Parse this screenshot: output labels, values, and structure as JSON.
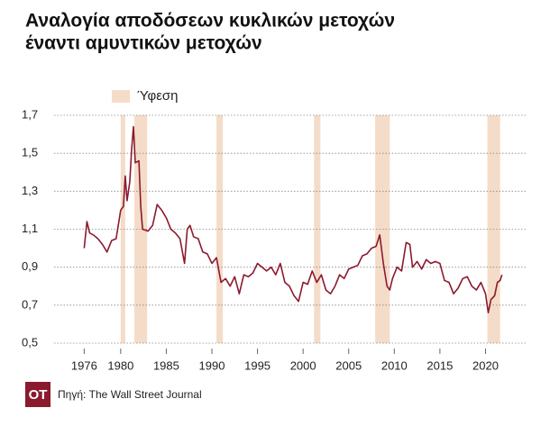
{
  "chart_data": {
    "type": "line",
    "title": [
      "Αναλογία αποδόσεων κυκλικών μετοχών",
      "έναντι αμυντικών μετοχών"
    ],
    "source": "Πηγή: The Wall Street Journal",
    "logo": "OT",
    "recession_label": "Ύφεση",
    "recession_color": "#f5dcc8",
    "recessions": [
      [
        1980.0,
        1980.5
      ],
      [
        1981.5,
        1982.9
      ],
      [
        1990.5,
        1991.2
      ],
      [
        2001.2,
        2001.9
      ],
      [
        2007.9,
        2009.5
      ],
      [
        2020.2,
        2021.6
      ]
    ],
    "xlim": [
      1972.7,
      2024.6
    ],
    "ylim": [
      0.5,
      1.7
    ],
    "xticks": [
      1976,
      1980,
      1985,
      1990,
      1995,
      2000,
      2005,
      2010,
      2015,
      2020
    ],
    "yticks": [
      {
        "value": 0.5,
        "label": "0,5"
      },
      {
        "value": 0.7,
        "label": "0,7"
      },
      {
        "value": 0.9,
        "label": "0,9"
      },
      {
        "value": 1.1,
        "label": "1,1"
      },
      {
        "value": 1.3,
        "label": "1,3"
      },
      {
        "value": 1.5,
        "label": "1,5"
      },
      {
        "value": 1.7,
        "label": "1,7"
      }
    ],
    "grid": true,
    "series": [
      {
        "color": "#8b1a2e",
        "x": [
          1976.0,
          1976.3,
          1976.6,
          1977,
          1977.5,
          1978,
          1978.5,
          1979,
          1979.5,
          1980,
          1980.3,
          1980.5,
          1980.7,
          1981,
          1981.2,
          1981.4,
          1981.6,
          1982,
          1982.2,
          1982.4,
          1983,
          1983.5,
          1984,
          1984.5,
          1985,
          1985.5,
          1986,
          1986.5,
          1987,
          1987.3,
          1987.6,
          1988,
          1988.5,
          1989,
          1989.5,
          1990,
          1990.5,
          1991,
          1991.5,
          1992,
          1992.5,
          1993,
          1993.5,
          1994,
          1994.5,
          1995,
          1995.5,
          1996,
          1996.5,
          1997,
          1997.5,
          1998,
          1998.5,
          1999,
          1999.5,
          2000,
          2000.5,
          2001,
          2001.5,
          2002,
          2002.5,
          2003,
          2003.5,
          2004,
          2004.5,
          2005,
          2005.5,
          2006,
          2006.5,
          2007,
          2007.5,
          2008,
          2008.4,
          2008.8,
          2009.2,
          2009.5,
          2009.8,
          2010.3,
          2010.8,
          2011.3,
          2011.7,
          2012,
          2012.5,
          2013,
          2013.5,
          2014,
          2014.5,
          2015,
          2015.5,
          2016,
          2016.5,
          2017,
          2017.5,
          2018,
          2018.5,
          2019,
          2019.5,
          2020,
          2020.3,
          2020.6,
          2021,
          2021.3,
          2021.6,
          2021.8
        ],
        "values": [
          1.0,
          1.14,
          1.08,
          1.07,
          1.05,
          1.02,
          0.98,
          1.04,
          1.05,
          1.2,
          1.22,
          1.38,
          1.25,
          1.35,
          1.52,
          1.64,
          1.45,
          1.46,
          1.22,
          1.1,
          1.09,
          1.12,
          1.23,
          1.2,
          1.16,
          1.1,
          1.08,
          1.05,
          0.92,
          1.1,
          1.12,
          1.06,
          1.05,
          0.98,
          0.97,
          0.92,
          0.95,
          0.82,
          0.84,
          0.8,
          0.85,
          0.76,
          0.86,
          0.85,
          0.87,
          0.92,
          0.9,
          0.88,
          0.9,
          0.86,
          0.92,
          0.82,
          0.8,
          0.75,
          0.72,
          0.82,
          0.81,
          0.88,
          0.82,
          0.86,
          0.78,
          0.76,
          0.8,
          0.86,
          0.84,
          0.89,
          0.9,
          0.91,
          0.96,
          0.97,
          1.0,
          1.01,
          1.07,
          0.92,
          0.8,
          0.78,
          0.84,
          0.9,
          0.88,
          1.03,
          1.02,
          0.9,
          0.93,
          0.89,
          0.94,
          0.92,
          0.93,
          0.92,
          0.83,
          0.82,
          0.76,
          0.79,
          0.84,
          0.85,
          0.8,
          0.78,
          0.82,
          0.76,
          0.66,
          0.73,
          0.75,
          0.82,
          0.83,
          0.86
        ]
      }
    ]
  }
}
